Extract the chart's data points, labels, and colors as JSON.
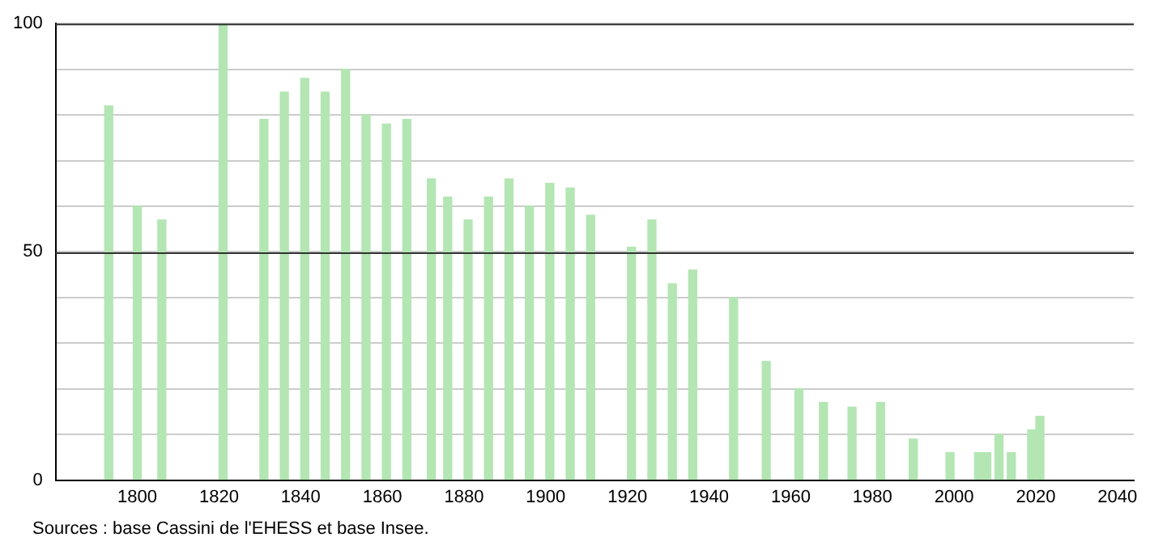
{
  "chart_data": {
    "type": "bar",
    "x": [
      1793,
      1800,
      1806,
      1821,
      1831,
      1836,
      1841,
      1846,
      1851,
      1856,
      1861,
      1866,
      1872,
      1876,
      1881,
      1886,
      1891,
      1896,
      1901,
      1906,
      1911,
      1921,
      1926,
      1931,
      1936,
      1946,
      1954,
      1962,
      1968,
      1975,
      1982,
      1990,
      1999,
      2006,
      2008,
      2011,
      2014,
      2019,
      2021
    ],
    "values": [
      82,
      60,
      57,
      100,
      79,
      85,
      88,
      85,
      90,
      80,
      78,
      79,
      66,
      62,
      57,
      62,
      66,
      60,
      65,
      64,
      58,
      51,
      57,
      43,
      46,
      40,
      26,
      20,
      17,
      16,
      17,
      9,
      6,
      6,
      6,
      10,
      6,
      11,
      14
    ],
    "color": "#b3e6b3",
    "xlim": [
      1780,
      2044
    ],
    "xticks": [
      1800,
      1820,
      1840,
      1860,
      1880,
      1900,
      1920,
      1940,
      1960,
      1980,
      2000,
      2020,
      2040
    ],
    "ylim": [
      0,
      100
    ],
    "yticks": [
      0,
      {
        "value": 10,
        "label": null
      },
      {
        "value": 20,
        "label": null
      },
      {
        "value": 30,
        "label": null
      },
      {
        "value": 40,
        "label": null
      },
      50,
      {
        "value": 60,
        "label": null
      },
      {
        "value": 70,
        "label": null
      },
      {
        "value": 80,
        "label": null
      },
      {
        "value": 90,
        "label": null
      },
      100
    ],
    "grid": "y",
    "ref_lines": [
      {
        "axis": "y",
        "value": 50,
        "color": "#333333"
      }
    ],
    "annotations": [
      "Sources : base Cassini de l'EHESS et base Insee."
    ]
  }
}
